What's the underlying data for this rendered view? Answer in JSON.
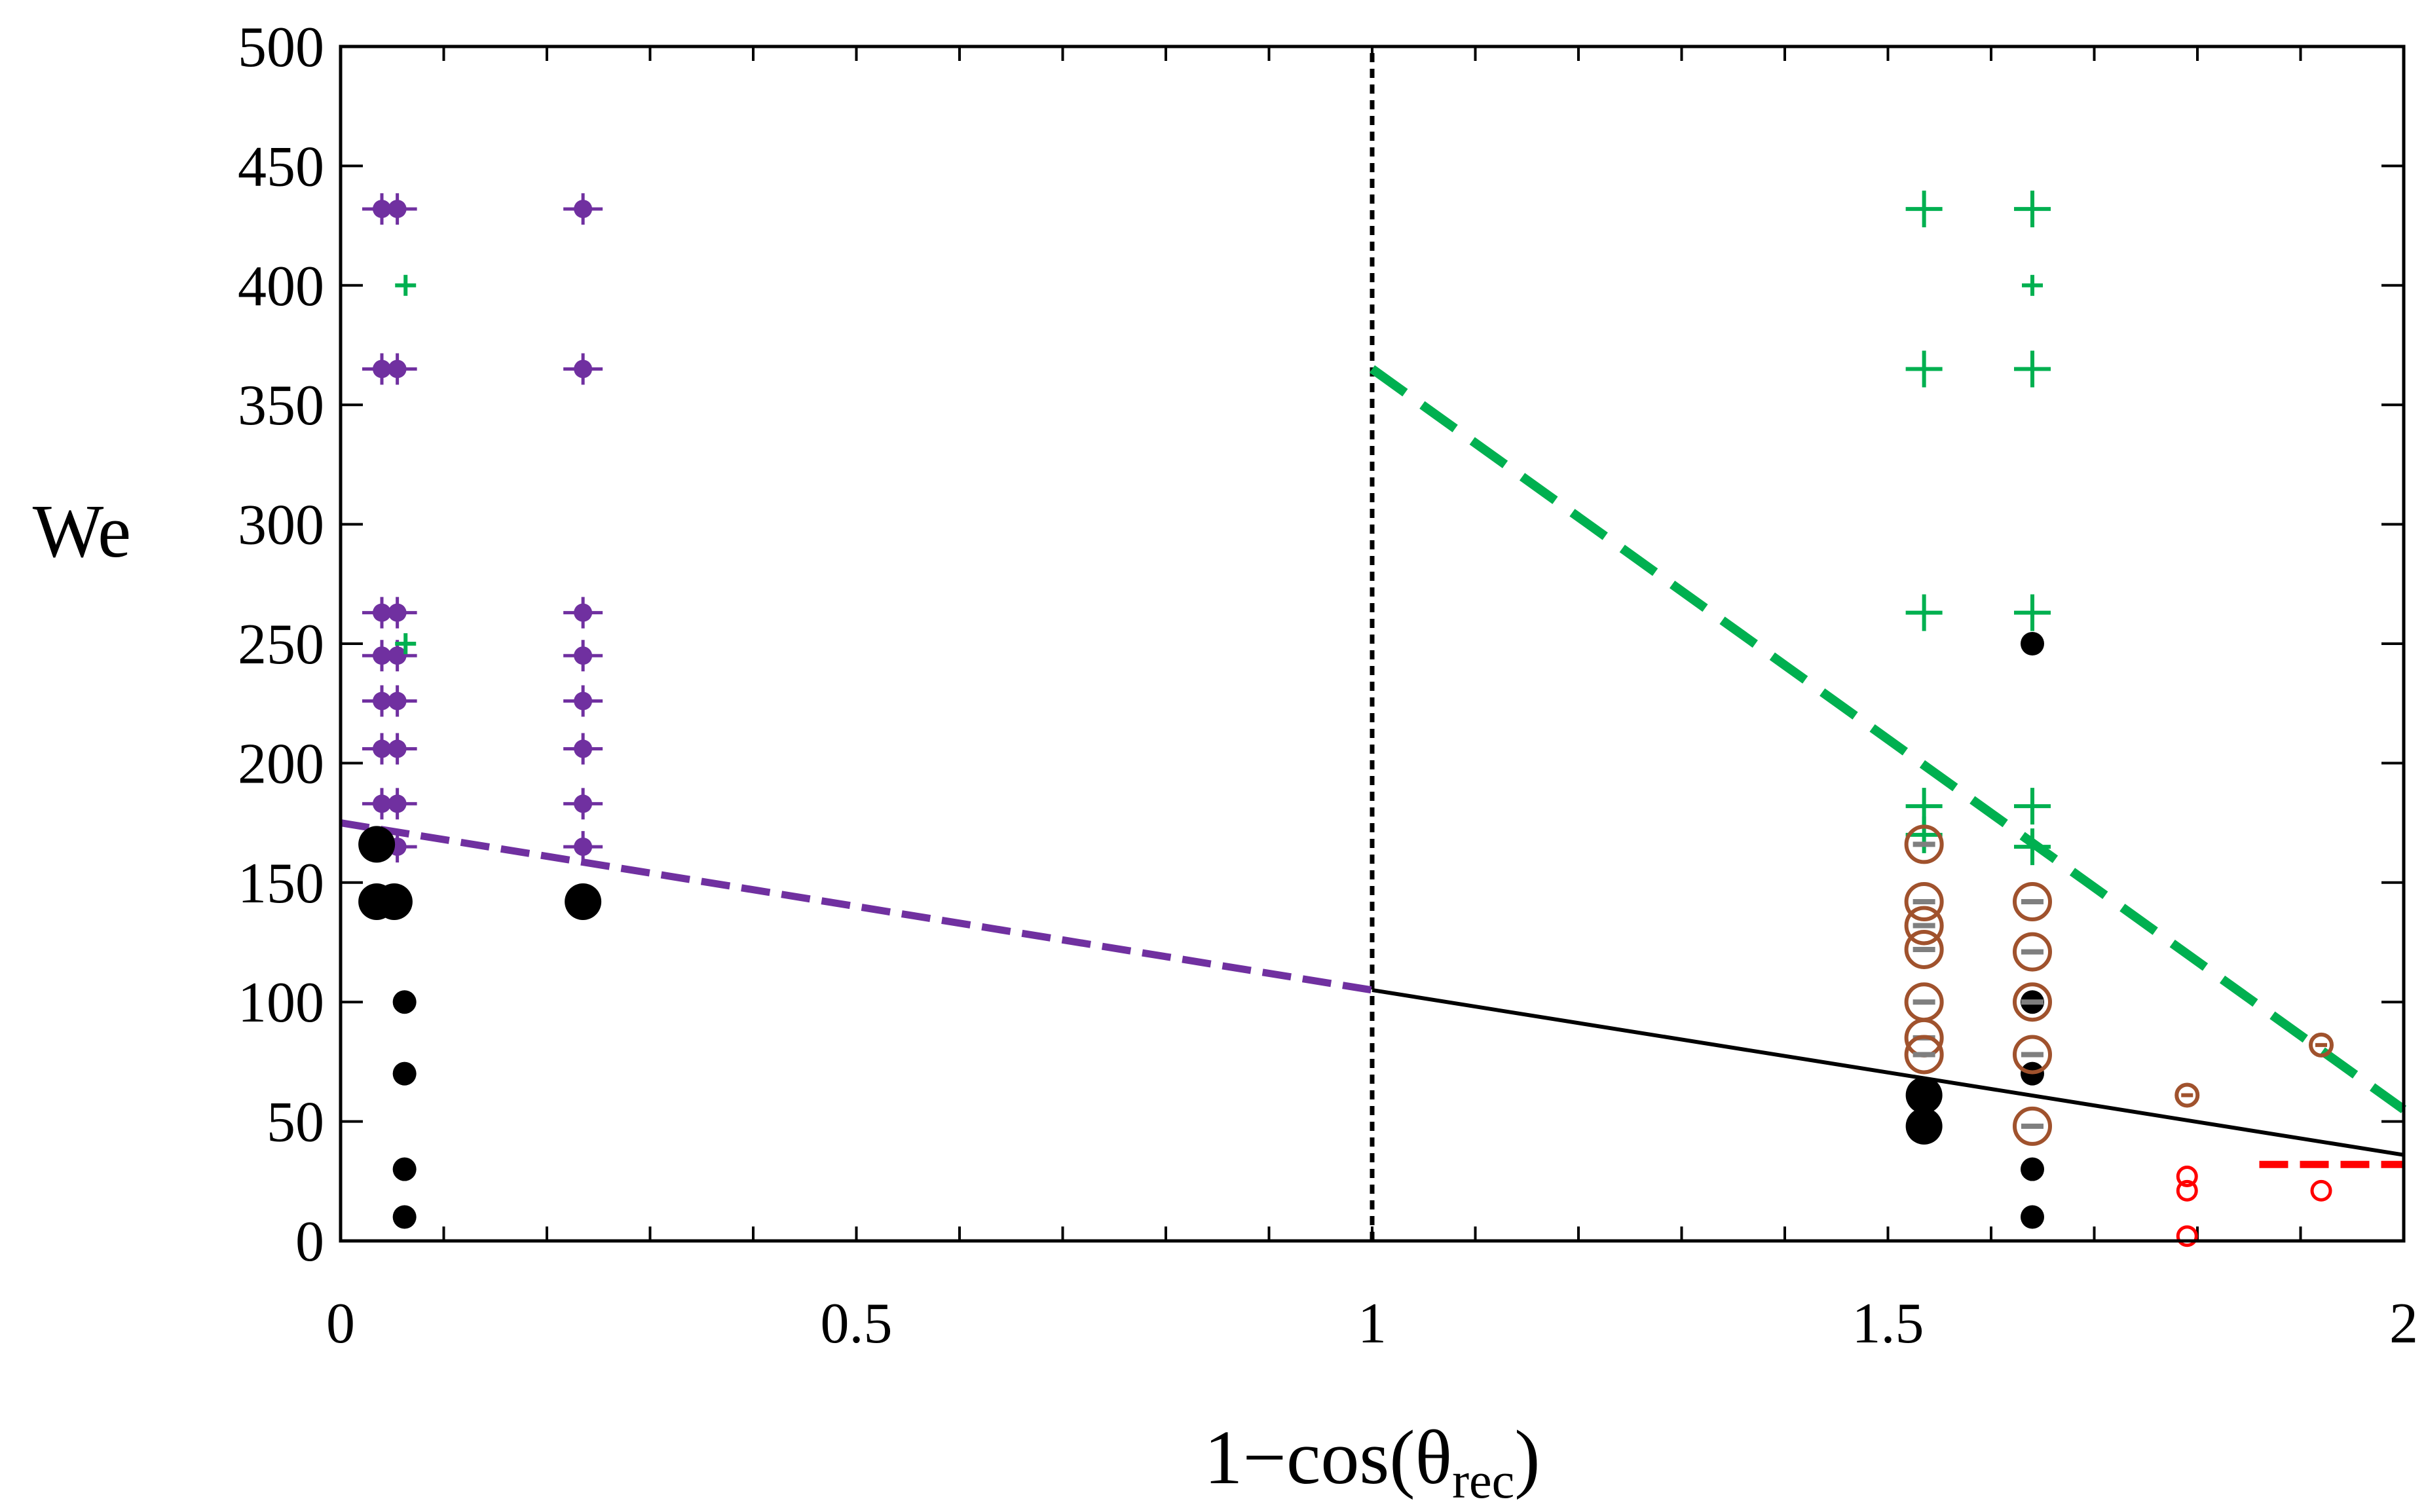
{
  "chart_data": {
    "type": "scatter",
    "title": "",
    "xlabel": "1−cos(θ",
    "xlabel_sub": "rec",
    "xlabel_close": ")",
    "ylabel": "We",
    "xlim": [
      0,
      2
    ],
    "ylim": [
      0,
      500
    ],
    "xticks": [
      {
        "v": 0,
        "label": "0"
      },
      {
        "v": 0.5,
        "label": "0.5"
      },
      {
        "v": 1,
        "label": "1"
      },
      {
        "v": 1.5,
        "label": "1.5"
      },
      {
        "v": 2,
        "label": "2"
      }
    ],
    "yticks": [
      {
        "v": 0,
        "label": "0"
      },
      {
        "v": 50,
        "label": "50"
      },
      {
        "v": 100,
        "label": "100"
      },
      {
        "v": 150,
        "label": "150"
      },
      {
        "v": 200,
        "label": "200"
      },
      {
        "v": 250,
        "label": "250"
      },
      {
        "v": 300,
        "label": "300"
      },
      {
        "v": 350,
        "label": "350"
      },
      {
        "v": 400,
        "label": "400"
      },
      {
        "v": 450,
        "label": "450"
      },
      {
        "v": 500,
        "label": "500"
      }
    ],
    "xminor_step": 0.1,
    "colors": {
      "black": "#000000",
      "purple": "#7030a0",
      "green": "#00b050",
      "brown": "#a0522d",
      "red": "#ff0000"
    },
    "lines": [
      {
        "name": "vertical-divider",
        "color": "#000000",
        "style": "dotted",
        "points": [
          [
            1,
            0
          ],
          [
            1,
            500
          ]
        ]
      },
      {
        "name": "purple-threshold",
        "color": "#7030a0",
        "style": "dashed",
        "points": [
          [
            0,
            175
          ],
          [
            1,
            105
          ]
        ]
      },
      {
        "name": "black-threshold",
        "color": "#000000",
        "style": "solid",
        "points": [
          [
            1,
            105
          ],
          [
            2,
            36
          ]
        ]
      },
      {
        "name": "green-threshold",
        "color": "#00b050",
        "style": "dashed",
        "points": [
          [
            1,
            365
          ],
          [
            2,
            55
          ]
        ]
      },
      {
        "name": "red-threshold",
        "color": "#ff0000",
        "style": "dashed",
        "points": [
          [
            1.86,
            32
          ],
          [
            2,
            32
          ]
        ]
      }
    ],
    "series": [
      {
        "name": "purple-cross-dot",
        "marker": "cross-dot",
        "color": "#7030a0",
        "points": [
          [
            0.04,
            432
          ],
          [
            0.055,
            432
          ],
          [
            0.04,
            365
          ],
          [
            0.055,
            365
          ],
          [
            0.04,
            263
          ],
          [
            0.055,
            263
          ],
          [
            0.04,
            245
          ],
          [
            0.055,
            245
          ],
          [
            0.04,
            226
          ],
          [
            0.055,
            226
          ],
          [
            0.04,
            206
          ],
          [
            0.055,
            206
          ],
          [
            0.04,
            183
          ],
          [
            0.055,
            183
          ],
          [
            0.055,
            165
          ],
          [
            0.235,
            432
          ],
          [
            0.235,
            365
          ],
          [
            0.235,
            263
          ],
          [
            0.235,
            245
          ],
          [
            0.235,
            226
          ],
          [
            0.235,
            206
          ],
          [
            0.235,
            183
          ],
          [
            0.235,
            165
          ]
        ]
      },
      {
        "name": "green-cross-large",
        "marker": "cross-large",
        "color": "#00b050",
        "points": [
          [
            1.535,
            432
          ],
          [
            1.64,
            432
          ],
          [
            1.535,
            365
          ],
          [
            1.64,
            365
          ],
          [
            1.535,
            263
          ],
          [
            1.64,
            263
          ],
          [
            1.535,
            182
          ],
          [
            1.64,
            182
          ],
          [
            1.535,
            170
          ],
          [
            1.64,
            165
          ]
        ]
      },
      {
        "name": "green-cross-small",
        "marker": "cross-small",
        "color": "#00b050",
        "points": [
          [
            0.063,
            400
          ],
          [
            0.063,
            250
          ],
          [
            1.64,
            400
          ]
        ]
      },
      {
        "name": "black-dot-large",
        "marker": "dot-large",
        "color": "#000000",
        "points": [
          [
            0.035,
            166
          ],
          [
            0.035,
            142
          ],
          [
            0.052,
            142
          ],
          [
            0.235,
            142
          ],
          [
            1.535,
            61
          ],
          [
            1.535,
            48
          ]
        ]
      },
      {
        "name": "black-dot-small",
        "marker": "dot-small",
        "color": "#000000",
        "points": [
          [
            0.062,
            100
          ],
          [
            0.062,
            70
          ],
          [
            0.062,
            30
          ],
          [
            0.062,
            10
          ],
          [
            1.64,
            250
          ],
          [
            1.64,
            100
          ],
          [
            1.64,
            70
          ],
          [
            1.64,
            30
          ],
          [
            1.64,
            10
          ]
        ]
      },
      {
        "name": "brown-circle-minus-large",
        "marker": "circle-minus-large",
        "color": "#a0522d",
        "points": [
          [
            1.535,
            166
          ],
          [
            1.535,
            142
          ],
          [
            1.535,
            132
          ],
          [
            1.535,
            122
          ],
          [
            1.535,
            100
          ],
          [
            1.535,
            85
          ],
          [
            1.535,
            78
          ],
          [
            1.64,
            142
          ],
          [
            1.64,
            121
          ],
          [
            1.64,
            100
          ],
          [
            1.64,
            78
          ],
          [
            1.64,
            48
          ]
        ]
      },
      {
        "name": "brown-circle-minus-small",
        "marker": "circle-minus-small",
        "color": "#a0522d",
        "points": [
          [
            1.79,
            61
          ],
          [
            1.92,
            82
          ]
        ]
      },
      {
        "name": "red-open-circle",
        "marker": "open-circle",
        "color": "#ff0000",
        "points": [
          [
            1.79,
            27
          ],
          [
            1.79,
            21
          ],
          [
            1.79,
            2
          ],
          [
            1.92,
            21
          ]
        ]
      }
    ]
  }
}
